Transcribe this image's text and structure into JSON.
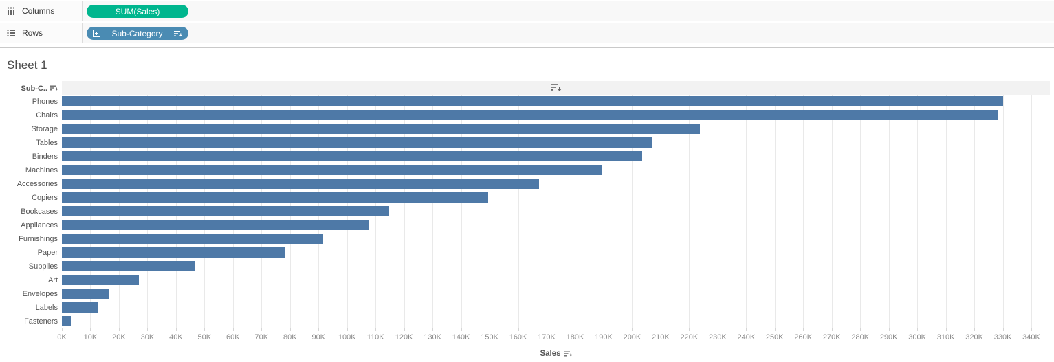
{
  "shelves": {
    "columns": {
      "label": "Columns",
      "pill": {
        "label": "SUM(Sales)",
        "color": "#00b68e",
        "type": "measure"
      }
    },
    "rows": {
      "label": "Rows",
      "pill": {
        "label": "Sub-Category",
        "color": "#4a8bb3",
        "type": "dimension",
        "icons": [
          "expand-plus-box",
          "sort-descending"
        ]
      }
    }
  },
  "sheet": {
    "title": "Sheet 1"
  },
  "chart_data": {
    "type": "bar",
    "orientation": "horizontal",
    "title": "Sheet 1",
    "row_header": "Sub-C..",
    "series_name": "SUM(Sales)",
    "categories": [
      "Phones",
      "Chairs",
      "Storage",
      "Tables",
      "Binders",
      "Machines",
      "Accessories",
      "Copiers",
      "Bookcases",
      "Appliances",
      "Furnishings",
      "Paper",
      "Supplies",
      "Art",
      "Envelopes",
      "Labels",
      "Fasteners"
    ],
    "values": [
      330007,
      328449,
      223844,
      206966,
      203413,
      189239,
      167380,
      149528,
      114880,
      107532,
      91705,
      78479,
      46674,
      27119,
      16476,
      12486,
      3024
    ],
    "sort": "descending",
    "xlabel": "Sales",
    "x_ticks": [
      "0K",
      "10K",
      "20K",
      "30K",
      "40K",
      "50K",
      "60K",
      "70K",
      "80K",
      "90K",
      "100K",
      "110K",
      "120K",
      "130K",
      "140K",
      "150K",
      "160K",
      "170K",
      "180K",
      "190K",
      "200K",
      "210K",
      "220K",
      "230K",
      "240K",
      "250K",
      "260K",
      "270K",
      "280K",
      "290K",
      "300K",
      "310K",
      "320K",
      "330K",
      "340K"
    ],
    "x_tick_step": 10000,
    "xlim": [
      0,
      346500
    ],
    "grid": true,
    "bar_color": "#4e79a7"
  }
}
